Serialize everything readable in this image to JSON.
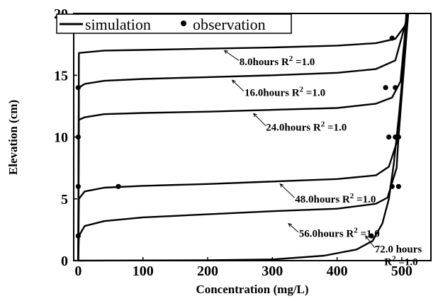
{
  "chart_data": {
    "type": "line",
    "xlabel": "Concentration (mg/L)",
    "ylabel": "Elevation (cm)",
    "xlim": [
      -7,
      545
    ],
    "ylim": [
      0,
      20
    ],
    "xticks": [
      0,
      100,
      200,
      300,
      400,
      500
    ],
    "yticks": [
      0,
      5,
      10,
      15,
      20
    ],
    "grid": false,
    "legend": {
      "position": "top-left",
      "entries": [
        "simulation",
        "observation"
      ]
    },
    "series": [
      {
        "name": "8.0hours",
        "curve": [
          [
            0,
            0
          ],
          [
            1,
            16.8
          ],
          [
            40,
            17.0
          ],
          [
            100,
            17.05
          ],
          [
            200,
            17.15
          ],
          [
            300,
            17.25
          ],
          [
            400,
            17.4
          ],
          [
            460,
            17.6
          ],
          [
            490,
            17.95
          ],
          [
            505,
            19
          ],
          [
            510,
            20
          ]
        ],
        "obs": [
          [
            485,
            18
          ]
        ]
      },
      {
        "name": "16.0hours",
        "curve": [
          [
            0,
            0
          ],
          [
            1,
            14
          ],
          [
            10,
            14.3
          ],
          [
            40,
            14.55
          ],
          [
            100,
            14.7
          ],
          [
            200,
            14.85
          ],
          [
            300,
            15.0
          ],
          [
            400,
            15.2
          ],
          [
            460,
            15.5
          ],
          [
            490,
            16.2
          ],
          [
            510,
            20
          ]
        ],
        "obs": [
          [
            0,
            14
          ],
          [
            475,
            14
          ],
          [
            490,
            14
          ]
        ]
      },
      {
        "name": "24.0hours",
        "curve": [
          [
            0,
            0
          ],
          [
            1,
            11.4
          ],
          [
            10,
            11.6
          ],
          [
            40,
            11.85
          ],
          [
            100,
            11.95
          ],
          [
            200,
            12.05
          ],
          [
            300,
            12.2
          ],
          [
            400,
            12.35
          ],
          [
            460,
            12.7
          ],
          [
            485,
            13.2
          ],
          [
            498,
            14.5
          ],
          [
            508,
            20
          ]
        ],
        "obs": [
          [
            0,
            10
          ],
          [
            480,
            10
          ],
          [
            490,
            10
          ],
          [
            495,
            10
          ]
        ]
      },
      {
        "name": "48.0hours",
        "curve": [
          [
            0,
            0
          ],
          [
            1,
            5.0
          ],
          [
            10,
            5.6
          ],
          [
            40,
            5.9
          ],
          [
            100,
            6.05
          ],
          [
            200,
            6.2
          ],
          [
            300,
            6.4
          ],
          [
            400,
            6.6
          ],
          [
            460,
            6.9
          ],
          [
            480,
            7.6
          ],
          [
            495,
            10
          ],
          [
            510,
            20
          ]
        ],
        "obs": [
          [
            0,
            6
          ],
          [
            62,
            6
          ],
          [
            485,
            6
          ],
          [
            495,
            6
          ]
        ]
      },
      {
        "name": "56.0hours",
        "curve": [
          [
            0,
            0
          ],
          [
            1,
            2.0
          ],
          [
            10,
            2.8
          ],
          [
            40,
            3.2
          ],
          [
            100,
            3.5
          ],
          [
            200,
            3.75
          ],
          [
            300,
            4.0
          ],
          [
            400,
            4.2
          ],
          [
            460,
            4.6
          ],
          [
            478,
            5.1
          ],
          [
            492,
            7.5
          ],
          [
            507,
            20
          ]
        ],
        "obs": [
          [
            0,
            2
          ]
        ]
      },
      {
        "name": "72.0 hours",
        "curve": [
          [
            0,
            0
          ],
          [
            200,
            0.03
          ],
          [
            300,
            0.1
          ],
          [
            380,
            0.4
          ],
          [
            430,
            0.9
          ],
          [
            455,
            1.6
          ],
          [
            470,
            3.0
          ],
          [
            480,
            5.0
          ],
          [
            488,
            8.0
          ],
          [
            496,
            12
          ],
          [
            503,
            16
          ],
          [
            509,
            20
          ]
        ],
        "obs": [
          [
            453,
            2
          ]
        ]
      }
    ],
    "annotations": [
      {
        "text": "8.0hours R",
        "sup": "2",
        "tail": " =1.0",
        "at": [
          249,
          16.1
        ],
        "arrow_from": [
          248,
          16.2
        ],
        "arrow_to": [
          226,
          17.0
        ]
      },
      {
        "text": "16.0hours R",
        "sup": "2",
        "tail": " =1.0",
        "at": [
          257,
          13.6
        ],
        "arrow_from": [
          256,
          13.7
        ],
        "arrow_to": [
          238,
          14.6
        ]
      },
      {
        "text": "24.0hours R",
        "sup": "2",
        "tail": " =1.0",
        "at": [
          290,
          10.8
        ],
        "arrow_from": [
          290,
          10.9
        ],
        "arrow_to": [
          271,
          11.9
        ]
      },
      {
        "text": "48.0hours R",
        "sup": "2",
        "tail": " =1.0",
        "at": [
          335,
          5.0
        ],
        "arrow_from": [
          334,
          5.1
        ],
        "arrow_to": [
          312,
          6.2
        ]
      },
      {
        "text": "56.0hours R",
        "sup": "2",
        "tail": " =1.0",
        "at": [
          341,
          2.2
        ],
        "arrow_from": [
          340,
          2.3
        ],
        "arrow_to": [
          325,
          3.0
        ]
      },
      {
        "text": "72.0 hours",
        "sup": "",
        "tail": "",
        "at": [
          458,
          0.95
        ],
        "arrow_from": [
          458,
          1.05
        ],
        "arrow_to": [
          444,
          2.0
        ]
      },
      {
        "text": "R",
        "sup": "2",
        "tail": " =1.0",
        "at": [
          473,
          -0.1
        ],
        "arrow_from": null,
        "arrow_to": null
      }
    ]
  }
}
